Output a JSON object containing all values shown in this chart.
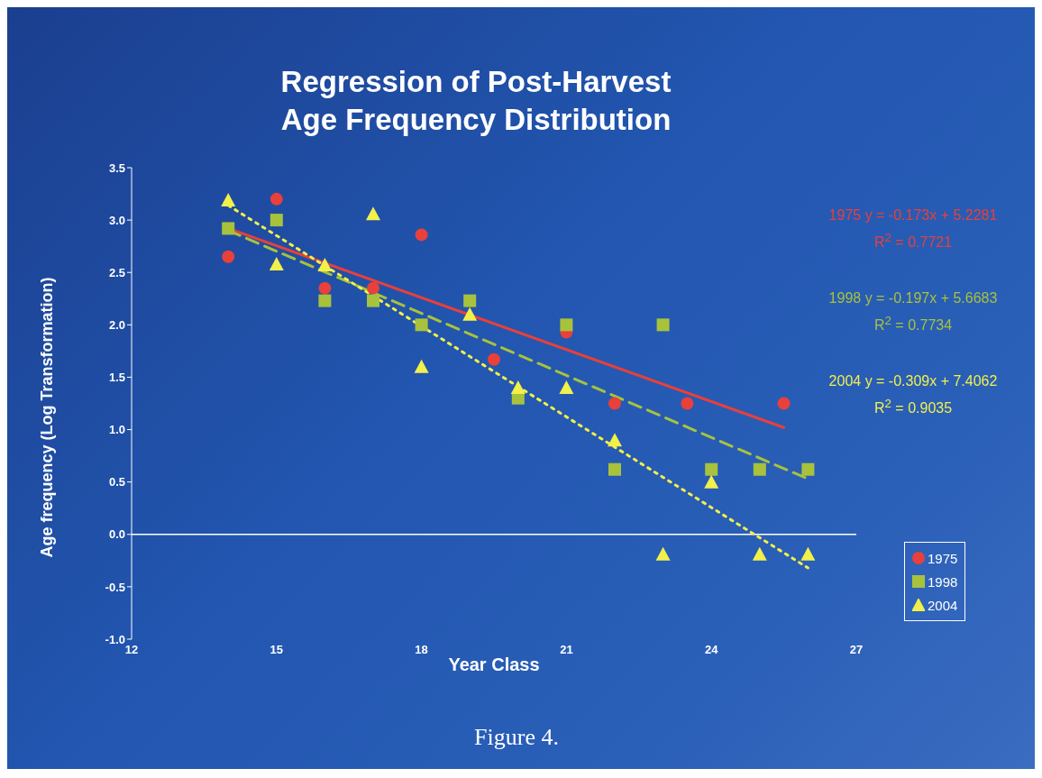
{
  "chart_data": {
    "type": "scatter",
    "title": "Regression of Post-Harvest\nAge Frequency Distribution",
    "xlabel": "Year Class",
    "ylabel": "Age frequency (Log Transformation)",
    "xlim": [
      12,
      27
    ],
    "xticks": [
      12,
      15,
      18,
      21,
      24,
      27
    ],
    "ylim": [
      -1,
      3.5
    ],
    "yticks": [
      {
        "value": -1,
        "label": "-1.0"
      },
      {
        "value": -0.5,
        "label": "-0.5"
      },
      {
        "value": 0,
        "label": "0.0"
      },
      {
        "value": 0.5,
        "label": "0.5"
      },
      {
        "value": 1,
        "label": "1.0"
      },
      {
        "value": 1.5,
        "label": "1.5"
      },
      {
        "value": 2,
        "label": "2.0"
      },
      {
        "value": 2.5,
        "label": "2.5"
      },
      {
        "value": 3,
        "label": "3.0"
      },
      {
        "value": 3.5,
        "label": "3.5"
      }
    ],
    "ref_lines": [
      {
        "axis": "y",
        "value": 0,
        "color": "#ffffff"
      }
    ],
    "legend": "right",
    "series": [
      {
        "name": "1975",
        "color": "#e8403a",
        "marker": "circle",
        "x": [
          14,
          15,
          16,
          17,
          18,
          19.5,
          21,
          22,
          23.5,
          25.5
        ],
        "values": [
          2.65,
          3.2,
          2.35,
          2.35,
          2.86,
          1.67,
          1.93,
          1.25,
          1.25,
          1.25
        ]
      },
      {
        "name": "1998",
        "color": "#a8c23c",
        "marker": "square",
        "x": [
          14,
          15,
          16,
          17,
          18,
          19,
          20,
          21,
          22,
          23,
          24,
          25,
          26
        ],
        "values": [
          2.92,
          3.0,
          2.23,
          2.23,
          2.0,
          2.23,
          1.3,
          2.0,
          0.62,
          2.0,
          0.62,
          0.62,
          0.62
        ]
      },
      {
        "name": "2004",
        "color": "#f2f04a",
        "marker": "triangle",
        "x": [
          14,
          15,
          16,
          17,
          18,
          19,
          20,
          21,
          22,
          23,
          24,
          25,
          26
        ],
        "values": [
          3.19,
          2.58,
          2.57,
          3.06,
          1.6,
          2.1,
          1.4,
          1.4,
          0.9,
          -0.19,
          0.5,
          -0.19,
          -0.19
        ]
      },
      {
        "type": "line",
        "color": "#e8403a",
        "line_style": "solid",
        "x": [
          14,
          25.5
        ],
        "values": [
          2.92,
          1.02
        ]
      },
      {
        "type": "line",
        "color": "#a8c23c",
        "line_style": "dashed",
        "x": [
          14,
          26
        ],
        "values": [
          2.9,
          0.53
        ]
      },
      {
        "type": "line",
        "color": "#f2f04a",
        "line_style": "dotted",
        "x": [
          14,
          26
        ],
        "values": [
          3.14,
          -0.32
        ]
      }
    ],
    "annotations": [
      "1975  y = -0.173x + 5.2281",
      "R$^{2}$ = 0.7721",
      "1998  y = -0.197x + 5.6683",
      "R$^{2}$ = 0.7734",
      "2004 y = -0.309x + 7.4062",
      "R$^{2}$ = 0.9035",
      "Figure 4."
    ]
  }
}
